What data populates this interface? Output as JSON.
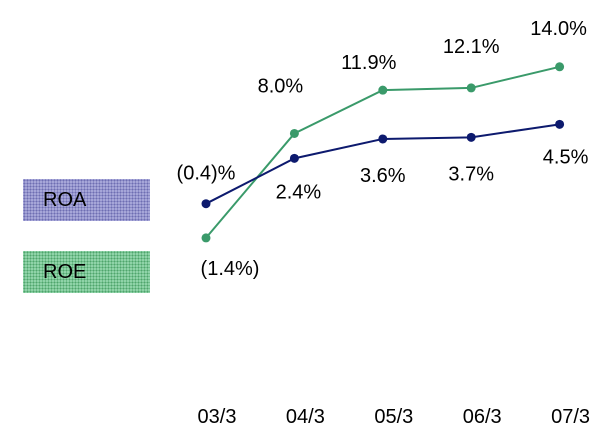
{
  "chart_data": {
    "type": "line",
    "categories": [
      "03/3",
      "04/3",
      "05/3",
      "06/3",
      "07/3"
    ],
    "series": [
      {
        "name": "ROA",
        "color": "#0d1a6e",
        "values": [
          -0.4,
          2.4,
          3.6,
          3.7,
          4.5
        ],
        "labels": [
          "(0.4)%",
          "2.4%",
          "3.6%",
          "3.7%",
          "4.5%"
        ]
      },
      {
        "name": "ROE",
        "color": "#3a9a6a",
        "values": [
          -1.4,
          8.0,
          11.9,
          12.1,
          14.0
        ],
        "labels": [
          "(1.4%)",
          "8.0%",
          "11.9%",
          "12.1%",
          "14.0%"
        ]
      }
    ],
    "legend_position": "left",
    "grid": false
  }
}
